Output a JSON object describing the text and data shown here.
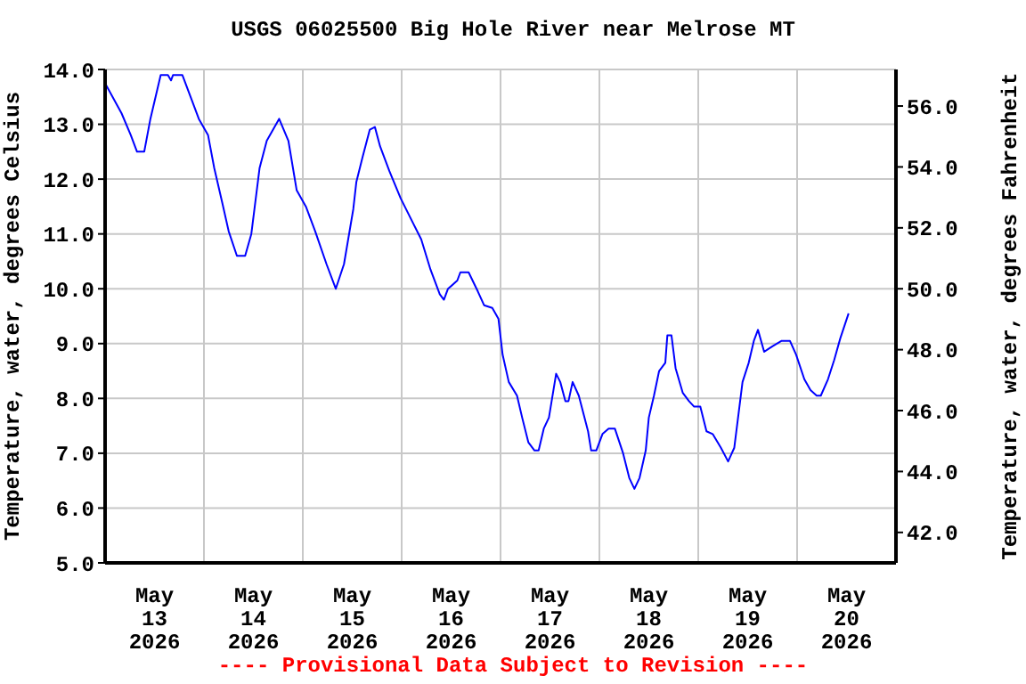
{
  "chart_data": {
    "type": "line",
    "title": "USGS 06025500 Big Hole River near Melrose MT",
    "ylabel": "Temperature, water, degrees Celsius",
    "y2label": "Temperature, water, degrees Fahrenheit",
    "annotations": [
      "---- Provisional Data Subject to Revision ----"
    ],
    "xlim": [
      "2026-05-13T00:00",
      "2026-05-21T00:00"
    ],
    "xticks": [
      {
        "value": "2026-05-13T00:00",
        "label": null
      },
      {
        "value": "2026-05-13T12:00",
        "label": "May\n13\n2026"
      },
      {
        "value": "2026-05-14T00:00",
        "label": null
      },
      {
        "value": "2026-05-14T12:00",
        "label": "May\n14\n2026"
      },
      {
        "value": "2026-05-15T00:00",
        "label": null
      },
      {
        "value": "2026-05-15T12:00",
        "label": "May\n15\n2026"
      },
      {
        "value": "2026-05-16T00:00",
        "label": null
      },
      {
        "value": "2026-05-16T12:00",
        "label": "May\n16\n2026"
      },
      {
        "value": "2026-05-17T00:00",
        "label": null
      },
      {
        "value": "2026-05-17T12:00",
        "label": "May\n17\n2026"
      },
      {
        "value": "2026-05-18T00:00",
        "label": null
      },
      {
        "value": "2026-05-18T12:00",
        "label": "May\n18\n2026"
      },
      {
        "value": "2026-05-19T00:00",
        "label": null
      },
      {
        "value": "2026-05-19T12:00",
        "label": "May\n19\n2026"
      },
      {
        "value": "2026-05-20T00:00",
        "label": null
      },
      {
        "value": "2026-05-20T12:00",
        "label": "May\n20\n2026"
      },
      {
        "value": "2026-05-21T00:00",
        "label": null
      }
    ],
    "ylim": [
      5,
      14
    ],
    "yticks": [
      {
        "value": 5,
        "label": "5.0"
      },
      {
        "value": 6,
        "label": "6.0"
      },
      {
        "value": 7,
        "label": "7.0"
      },
      {
        "value": 8,
        "label": "8.0"
      },
      {
        "value": 9,
        "label": "9.0"
      },
      {
        "value": 10,
        "label": "10.0"
      },
      {
        "value": 11,
        "label": "11.0"
      },
      {
        "value": 12,
        "label": "12.0"
      },
      {
        "value": 13,
        "label": "13.0"
      },
      {
        "value": 14,
        "label": "14.0"
      }
    ],
    "y2lim": [
      41,
      57.2
    ],
    "y2ticks": [
      {
        "value": 42,
        "label": "42.0"
      },
      {
        "value": 44,
        "label": "44.0"
      },
      {
        "value": 46,
        "label": "46.0"
      },
      {
        "value": 48,
        "label": "48.0"
      },
      {
        "value": 50,
        "label": "50.0"
      },
      {
        "value": 52,
        "label": "52.0"
      },
      {
        "value": 54,
        "label": "54.0"
      },
      {
        "value": 56,
        "label": "56.0"
      }
    ],
    "grid": true,
    "marker": "none",
    "line_style": "solid",
    "x": [
      "2026-05-13T00:00",
      "2026-05-13T04:00",
      "2026-05-13T06:15",
      "2026-05-13T07:45",
      "2026-05-13T09:30",
      "2026-05-13T11:00",
      "2026-05-13T13:30",
      "2026-05-13T15:15",
      "2026-05-13T16:00",
      "2026-05-13T16:30",
      "2026-05-13T18:45",
      "2026-05-13T21:15",
      "2026-05-13T22:45",
      "2026-05-14T01:00",
      "2026-05-14T02:30",
      "2026-05-14T04:30",
      "2026-05-14T06:00",
      "2026-05-14T08:00",
      "2026-05-14T10:00",
      "2026-05-14T11:30",
      "2026-05-14T13:30",
      "2026-05-14T15:15",
      "2026-05-14T18:15",
      "2026-05-14T20:30",
      "2026-05-14T22:30",
      "2026-05-15T00:45",
      "2026-05-15T03:00",
      "2026-05-15T05:45",
      "2026-05-15T08:00",
      "2026-05-15T10:00",
      "2026-05-15T12:15",
      "2026-05-15T13:00",
      "2026-05-15T14:30",
      "2026-05-15T16:15",
      "2026-05-15T17:30",
      "2026-05-15T18:45",
      "2026-05-15T21:00",
      "2026-05-15T23:45",
      "2026-05-16T02:45",
      "2026-05-16T04:45",
      "2026-05-16T07:00",
      "2026-05-16T09:15",
      "2026-05-16T10:15",
      "2026-05-16T11:15",
      "2026-05-16T13:30",
      "2026-05-16T14:15",
      "2026-05-16T16:15",
      "2026-05-16T18:30",
      "2026-05-16T20:00",
      "2026-05-16T22:00",
      "2026-05-16T23:30",
      "2026-05-17T00:30",
      "2026-05-17T02:00",
      "2026-05-17T04:00",
      "2026-05-17T05:15",
      "2026-05-17T06:45",
      "2026-05-17T08:15",
      "2026-05-17T09:15",
      "2026-05-17T10:30",
      "2026-05-17T11:45",
      "2026-05-17T13:30",
      "2026-05-17T14:30",
      "2026-05-17T15:45",
      "2026-05-17T16:30",
      "2026-05-17T17:30",
      "2026-05-17T19:00",
      "2026-05-17T21:15",
      "2026-05-17T22:00",
      "2026-05-17T23:15",
      "2026-05-18T00:45",
      "2026-05-18T02:15",
      "2026-05-18T03:45",
      "2026-05-18T05:45",
      "2026-05-18T07:15",
      "2026-05-18T08:30",
      "2026-05-18T09:45",
      "2026-05-18T11:15",
      "2026-05-18T12:00",
      "2026-05-18T13:15",
      "2026-05-18T14:30",
      "2026-05-18T16:00",
      "2026-05-18T16:30",
      "2026-05-18T17:30",
      "2026-05-18T18:30",
      "2026-05-18T20:15",
      "2026-05-18T21:45",
      "2026-05-18T23:00",
      "2026-05-19T00:30",
      "2026-05-19T02:00",
      "2026-05-19T03:30",
      "2026-05-19T05:30",
      "2026-05-19T07:15",
      "2026-05-19T08:45",
      "2026-05-19T10:45",
      "2026-05-19T12:15",
      "2026-05-19T13:30",
      "2026-05-19T14:30",
      "2026-05-19T16:00",
      "2026-05-19T17:00",
      "2026-05-19T18:00",
      "2026-05-19T20:15",
      "2026-05-19T22:15",
      "2026-05-19T23:45",
      "2026-05-20T01:45",
      "2026-05-20T03:15",
      "2026-05-20T04:45",
      "2026-05-20T05:45",
      "2026-05-20T07:30",
      "2026-05-20T09:00",
      "2026-05-20T10:30",
      "2026-05-20T12:30"
    ],
    "series": [
      {
        "color": "#0000ff",
        "values": [
          13.75,
          13.2,
          12.8,
          12.5,
          12.5,
          13.1,
          13.9,
          13.9,
          13.8,
          13.9,
          13.9,
          13.4,
          13.1,
          12.8,
          12.2,
          11.55,
          11.05,
          10.6,
          10.6,
          11.0,
          12.2,
          12.7,
          13.1,
          12.7,
          11.8,
          11.5,
          11.05,
          10.45,
          10.0,
          10.45,
          11.45,
          11.95,
          12.4,
          12.9,
          12.95,
          12.6,
          12.15,
          11.65,
          11.2,
          10.9,
          10.35,
          9.9,
          9.8,
          10.0,
          10.15,
          10.3,
          10.3,
          9.95,
          9.7,
          9.65,
          9.45,
          8.8,
          8.3,
          8.05,
          7.65,
          7.2,
          7.05,
          7.05,
          7.45,
          7.65,
          8.45,
          8.3,
          7.95,
          7.95,
          8.3,
          8.05,
          7.4,
          7.05,
          7.05,
          7.35,
          7.45,
          7.45,
          7.0,
          6.55,
          6.35,
          6.55,
          7.05,
          7.65,
          8.05,
          8.5,
          8.65,
          9.15,
          9.15,
          8.55,
          8.1,
          7.95,
          7.85,
          7.85,
          7.4,
          7.35,
          7.1,
          6.85,
          7.1,
          8.3,
          8.65,
          9.05,
          9.25,
          8.85,
          8.9,
          8.95,
          9.05,
          9.05,
          8.8,
          8.35,
          8.15,
          8.05,
          8.05,
          8.35,
          8.7,
          9.1,
          9.55
        ]
      }
    ]
  }
}
